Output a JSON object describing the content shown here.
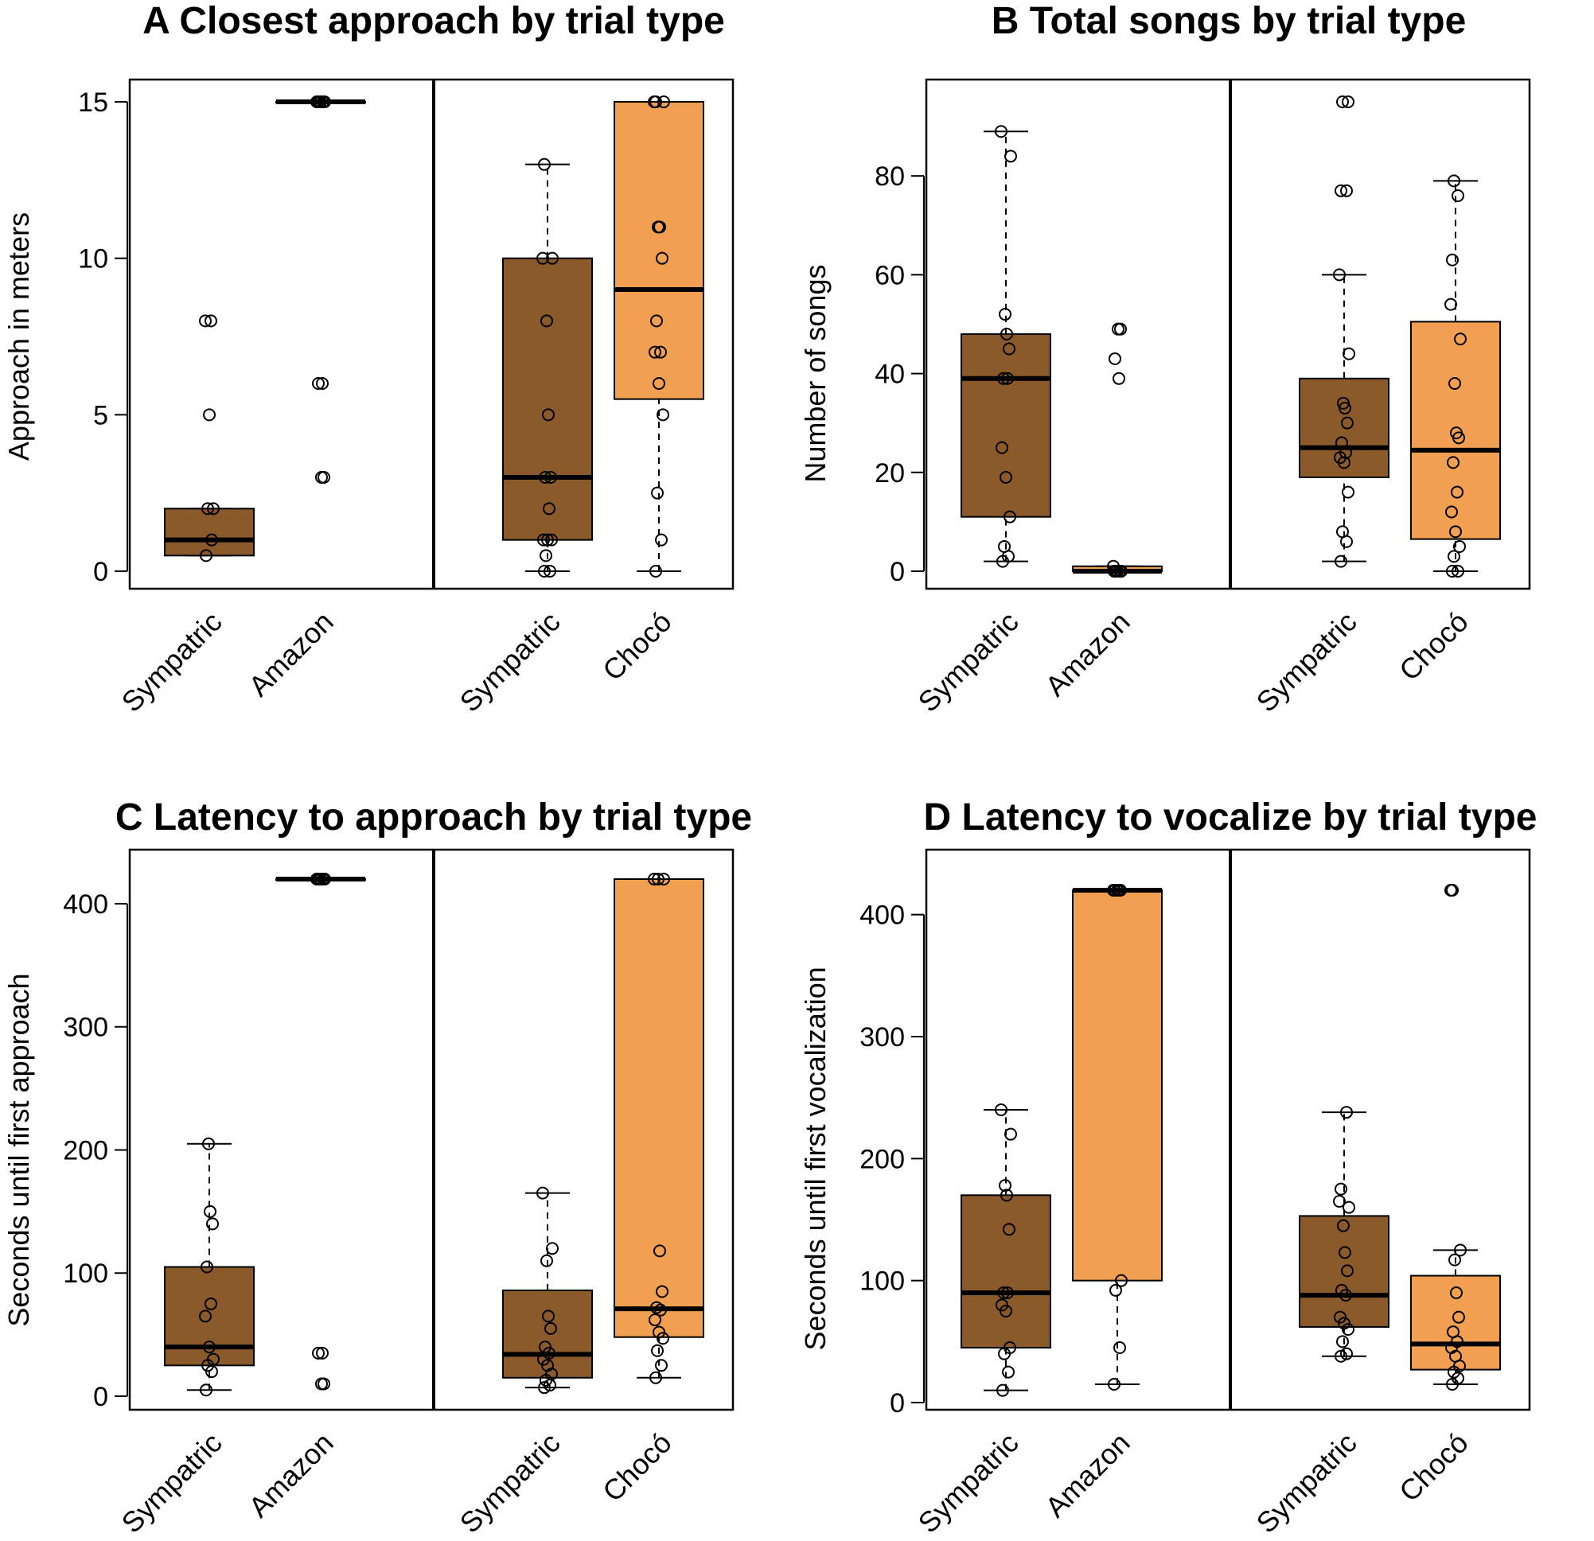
{
  "chart_data": [
    {
      "panel": "A",
      "type": "box",
      "title": "A Closest approach by trial type",
      "ylabel": "Approach in meters",
      "ylim": [
        0,
        15
      ],
      "yticks": [
        "0",
        "5",
        "10",
        "15"
      ],
      "ytick_values": [
        0,
        5,
        10,
        15
      ],
      "colors": {
        "Sympatric": "#8B5A2B",
        "Amazon": "#F0A050",
        "Chocó": "#F0A050"
      },
      "groups": [
        {
          "label": "Sympatric",
          "color": "Sympatric",
          "box": [
            0.5,
            0.5,
            1,
            2,
            2
          ],
          "points": [
            0.5,
            1,
            2,
            2,
            5,
            8,
            8
          ]
        },
        {
          "label": "Amazon",
          "color": "Amazon",
          "box": [
            15,
            15,
            15,
            15,
            15
          ],
          "points": [
            15,
            15,
            15,
            15,
            15,
            15,
            6,
            6,
            3,
            3
          ]
        },
        {
          "label": "Sympatric",
          "color": "Sympatric",
          "box": [
            0,
            1,
            3,
            10,
            13
          ],
          "points": [
            0,
            0,
            0.5,
            1,
            1,
            1,
            2,
            3,
            3,
            5,
            8,
            10,
            10,
            13
          ]
        },
        {
          "label": "Chocó",
          "color": "Chocó",
          "box": [
            0,
            5.5,
            9,
            15,
            15
          ],
          "points": [
            0,
            1,
            2.5,
            5,
            6,
            7,
            7,
            8,
            10,
            11,
            11,
            15,
            15,
            15
          ]
        }
      ]
    },
    {
      "panel": "B",
      "type": "box",
      "title": "B Total songs by trial type",
      "ylabel": "Number of songs",
      "ylim": [
        0,
        95
      ],
      "yticks": [
        "0",
        "20",
        "40",
        "60",
        "80"
      ],
      "ytick_values": [
        0,
        20,
        40,
        60,
        80
      ],
      "colors": {
        "Sympatric": "#8B5A2B",
        "Amazon": "#F0A050",
        "Chocó": "#F0A050"
      },
      "groups": [
        {
          "label": "Sympatric",
          "color": "Sympatric",
          "box": [
            2,
            11,
            39,
            48,
            89
          ],
          "points": [
            2,
            3,
            5,
            11,
            19,
            25,
            39,
            39,
            45,
            48,
            52,
            84,
            89
          ]
        },
        {
          "label": "Amazon",
          "color": "Amazon",
          "box": [
            0,
            0,
            0,
            1,
            1
          ],
          "points": [
            0,
            0,
            0,
            0,
            0,
            1,
            39,
            43,
            49,
            49
          ]
        },
        {
          "label": "Sympatric",
          "color": "Sympatric",
          "box": [
            2,
            19,
            25,
            39,
            60
          ],
          "points": [
            2,
            6,
            8,
            16,
            22,
            23,
            24,
            26,
            30,
            33,
            34,
            44,
            60,
            77,
            77,
            95,
            95
          ]
        },
        {
          "label": "Chocó",
          "color": "Chocó",
          "box": [
            0,
            6.5,
            24.5,
            50.5,
            79
          ],
          "points": [
            0,
            0,
            3,
            5,
            8,
            12,
            16,
            22,
            27,
            28,
            38,
            47,
            54,
            63,
            76,
            79
          ]
        }
      ]
    },
    {
      "panel": "C",
      "type": "box",
      "title": "C Latency to approach by trial type",
      "ylabel": "Seconds until first approach",
      "ylim": [
        0,
        420
      ],
      "yticks": [
        "0",
        "100",
        "200",
        "300",
        "400"
      ],
      "ytick_values": [
        0,
        100,
        200,
        300,
        400
      ],
      "colors": {
        "Sympatric": "#8B5A2B",
        "Amazon": "#F0A050",
        "Chocó": "#F0A050"
      },
      "groups": [
        {
          "label": "Sympatric",
          "color": "Sympatric",
          "box": [
            5,
            25,
            40,
            105,
            205
          ],
          "points": [
            5,
            20,
            25,
            30,
            40,
            65,
            75,
            105,
            140,
            150,
            205
          ]
        },
        {
          "label": "Amazon",
          "color": "Amazon",
          "box": [
            420,
            420,
            420,
            420,
            420
          ],
          "points": [
            420,
            420,
            420,
            420,
            420,
            420,
            35,
            35,
            10,
            10
          ]
        },
        {
          "label": "Sympatric",
          "color": "Sympatric",
          "box": [
            7,
            15,
            34,
            86,
            165
          ],
          "points": [
            7,
            9,
            13,
            18,
            25,
            30,
            35,
            40,
            55,
            65,
            110,
            120,
            165
          ]
        },
        {
          "label": "Chocó",
          "color": "Chocó",
          "box": [
            15,
            48,
            71,
            420,
            420
          ],
          "points": [
            15,
            25,
            37,
            47,
            52,
            62,
            70,
            72,
            85,
            118,
            420,
            420,
            420
          ]
        }
      ]
    },
    {
      "panel": "D",
      "type": "box",
      "title": "D Latency to vocalize by trial type",
      "ylabel": "Seconds until first vocalization",
      "ylim": [
        0,
        420
      ],
      "yticks": [
        "0",
        "100",
        "200",
        "300",
        "400"
      ],
      "ytick_values": [
        0,
        100,
        200,
        300,
        400
      ],
      "colors": {
        "Sympatric": "#8B5A2B",
        "Amazon": "#F0A050",
        "Chocó": "#F0A050"
      },
      "groups": [
        {
          "label": "Sympatric",
          "color": "Sympatric",
          "box": [
            10,
            45,
            90,
            170,
            240
          ],
          "points": [
            10,
            25,
            40,
            45,
            75,
            80,
            90,
            90,
            142,
            170,
            178,
            220,
            240
          ]
        },
        {
          "label": "Amazon",
          "color": "Amazon",
          "box": [
            15,
            100,
            420,
            420,
            420
          ],
          "points": [
            15,
            45,
            92,
            100,
            420,
            420,
            420,
            420,
            420
          ]
        },
        {
          "label": "Sympatric",
          "color": "Sympatric",
          "box": [
            38,
            62,
            88,
            153,
            238
          ],
          "points": [
            38,
            40,
            50,
            60,
            65,
            70,
            88,
            92,
            108,
            123,
            145,
            160,
            165,
            175,
            238
          ]
        },
        {
          "label": "Chocó",
          "color": "Chocó",
          "box": [
            15,
            27,
            48,
            104,
            125
          ],
          "points": [
            15,
            20,
            25,
            30,
            38,
            45,
            50,
            58,
            70,
            90,
            117,
            125,
            420,
            420
          ]
        }
      ]
    }
  ]
}
